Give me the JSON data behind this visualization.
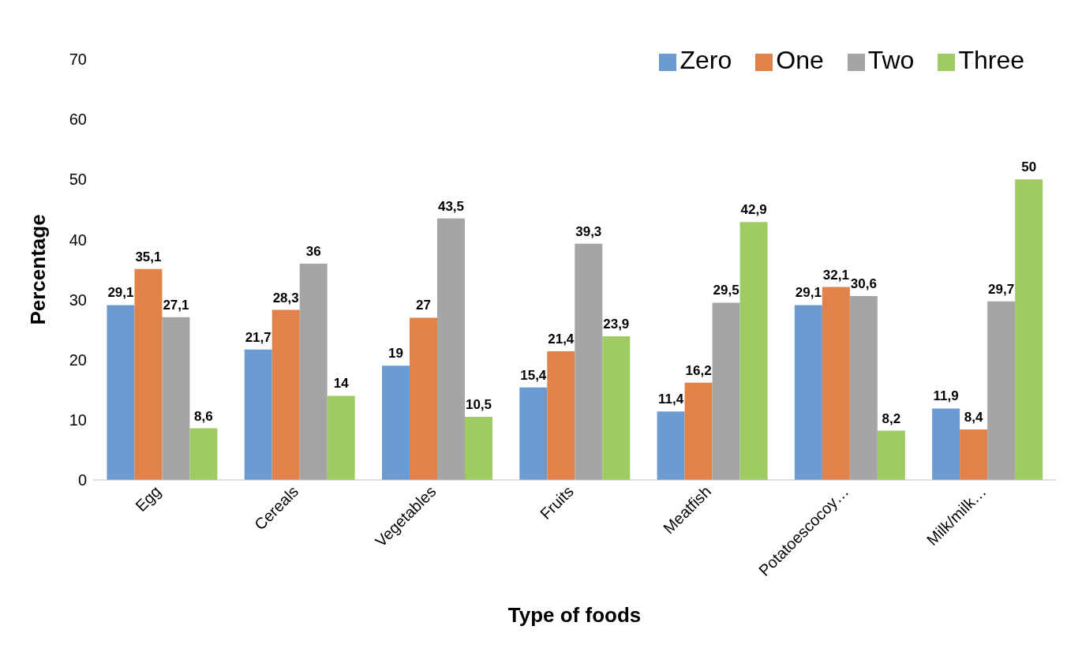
{
  "chart_data": {
    "type": "bar",
    "xlabel": "Type of foods",
    "ylabel": "Percentage",
    "categories": [
      "Egg",
      "Cereals",
      "Vegetables",
      "Fruits",
      "Meatfish",
      "Potatoescocoy…",
      "Milk/milk…"
    ],
    "series": [
      {
        "name": "Zero",
        "color": "#6a9bd1",
        "values": [
          29.1,
          21.7,
          19,
          15.4,
          11.4,
          29.1,
          11.9
        ],
        "value_labels": [
          "29,1",
          "21,7",
          "19",
          "15,4",
          "11,4",
          "29,1",
          "11,9"
        ]
      },
      {
        "name": "One",
        "color": "#e0824a",
        "values": [
          35.1,
          28.3,
          27,
          21.4,
          16.2,
          32.1,
          8.4
        ],
        "value_labels": [
          "35,1",
          "28,3",
          "27",
          "21,4",
          "16,2",
          "32,1",
          "8,4"
        ]
      },
      {
        "name": "Two",
        "color": "#a5a5a5",
        "values": [
          27.1,
          36,
          43.5,
          39.3,
          29.5,
          30.6,
          29.7
        ],
        "value_labels": [
          "27,1",
          "36",
          "43,5",
          "39,3",
          "29,5",
          "30,6",
          "29,7"
        ]
      },
      {
        "name": "Three",
        "color": "#9fcc62",
        "values": [
          8.6,
          14,
          10.5,
          23.9,
          42.9,
          8.2,
          50
        ],
        "value_labels": [
          "8,6",
          "14",
          "10,5",
          "23,9",
          "42,9",
          "8,2",
          "50"
        ]
      }
    ],
    "ylim": [
      0,
      70
    ],
    "yticks": [
      0,
      10,
      20,
      30,
      40,
      50,
      60,
      70
    ],
    "grid": false,
    "legend": "top right"
  }
}
